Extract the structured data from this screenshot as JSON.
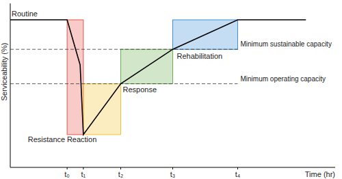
{
  "chart_data": {
    "type": "line",
    "x_label": "Time (hr)",
    "y_label": "Serviceability (%)",
    "line_label": "Routine",
    "x": [
      0,
      3.5,
      4.3,
      4.5,
      6.8,
      10,
      14,
      18.2
    ],
    "values": [
      90,
      90,
      62.5,
      20,
      51,
      72,
      90,
      90
    ],
    "color": "#000000",
    "xlim": [
      0,
      20
    ],
    "ylim": [
      0,
      100
    ],
    "xticks": [
      {
        "value": 3.5,
        "label": "t₀"
      },
      {
        "value": 4.5,
        "label": "t₁"
      },
      {
        "value": 6.8,
        "label": "t₂"
      },
      {
        "value": 10,
        "label": "t₃"
      },
      {
        "value": 14,
        "label": "t₄"
      }
    ],
    "yticks": [],
    "tick_labels": "x",
    "grid": false,
    "annotations": [
      {
        "label": "Minimum sustainable capacity",
        "y": 72
      },
      {
        "label": "Minimum operating capacity",
        "y": 51
      }
    ],
    "phases": [
      {
        "label": "Resistance",
        "x": [
          3.5,
          4.5
        ],
        "y": [
          20,
          90
        ],
        "color": "#e8534a"
      },
      {
        "label": "Reaction",
        "x": [
          4.5,
          6.8
        ],
        "y": [
          20,
          51
        ],
        "color": "#f2c230"
      },
      {
        "label": "Response",
        "x": [
          6.8,
          10
        ],
        "y": [
          51,
          72
        ],
        "color": "#6ab04c"
      },
      {
        "label": "Rehabilitation",
        "x": [
          10,
          14
        ],
        "y": [
          72,
          90
        ],
        "color": "#3d8fd8"
      }
    ]
  }
}
